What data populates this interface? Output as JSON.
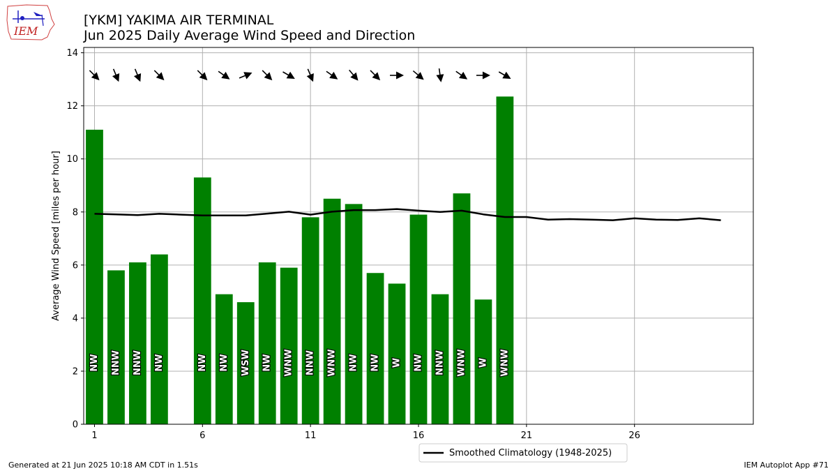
{
  "header": {
    "title_line1": "[YKM] YAKIMA AIR TERMINAL",
    "title_line2": "Jun 2025 Daily Average Wind Speed and Direction",
    "logo_text": "IEM"
  },
  "footer": {
    "left": "Generated at 21 Jun 2025 10:18 AM CDT in 1.51s",
    "right": "IEM Autoplot App #71"
  },
  "colors": {
    "bar": "#008000",
    "climatology": "#000000",
    "grid": "#b0b0b0"
  },
  "chart_data": {
    "type": "bar",
    "title": "[YKM] YAKIMA AIR TERMINAL\nJun 2025 Daily Average Wind Speed and Direction",
    "xlabel": "",
    "ylabel": "Average Wind Speed [miles per hour]",
    "xlim": [
      0.5,
      31.5
    ],
    "ylim": [
      0,
      14.2
    ],
    "xticks": [
      1,
      6,
      11,
      16,
      21,
      26
    ],
    "yticks": [
      0,
      2,
      4,
      6,
      8,
      10,
      12,
      14
    ],
    "grid": true,
    "legend_position": "bottom-center",
    "bars": [
      {
        "day": 1,
        "speed": 11.1,
        "dir_label": "NW",
        "dir_deg": 315
      },
      {
        "day": 2,
        "speed": 5.8,
        "dir_label": "NNW",
        "dir_deg": 337.5
      },
      {
        "day": 3,
        "speed": 6.1,
        "dir_label": "NNW",
        "dir_deg": 337.5
      },
      {
        "day": 4,
        "speed": 6.4,
        "dir_label": "NW",
        "dir_deg": 315
      },
      {
        "day": 6,
        "speed": 9.3,
        "dir_label": "NW",
        "dir_deg": 315
      },
      {
        "day": 7,
        "speed": 4.9,
        "dir_label": "NW",
        "dir_deg": 305
      },
      {
        "day": 8,
        "speed": 4.6,
        "dir_label": "WSW",
        "dir_deg": 247.5
      },
      {
        "day": 9,
        "speed": 6.1,
        "dir_label": "NW",
        "dir_deg": 315
      },
      {
        "day": 10,
        "speed": 5.9,
        "dir_label": "WNW",
        "dir_deg": 300
      },
      {
        "day": 11,
        "speed": 7.8,
        "dir_label": "NNW",
        "dir_deg": 337.5
      },
      {
        "day": 12,
        "speed": 8.5,
        "dir_label": "WNW",
        "dir_deg": 305
      },
      {
        "day": 13,
        "speed": 8.3,
        "dir_label": "NW",
        "dir_deg": 320
      },
      {
        "day": 14,
        "speed": 5.7,
        "dir_label": "NW",
        "dir_deg": 315
      },
      {
        "day": 15,
        "speed": 5.3,
        "dir_label": "W",
        "dir_deg": 270
      },
      {
        "day": 16,
        "speed": 7.9,
        "dir_label": "NW",
        "dir_deg": 310
      },
      {
        "day": 17,
        "speed": 4.9,
        "dir_label": "NNW",
        "dir_deg": 352
      },
      {
        "day": 18,
        "speed": 8.7,
        "dir_label": "WNW",
        "dir_deg": 305
      },
      {
        "day": 19,
        "speed": 4.7,
        "dir_label": "W",
        "dir_deg": 270
      },
      {
        "day": 20,
        "speed": 12.35,
        "dir_label": "WNW",
        "dir_deg": 300
      }
    ],
    "series": [
      {
        "name": "Smoothed Climatology (1948-2025)",
        "x": [
          1,
          2,
          3,
          4,
          5,
          6,
          7,
          8,
          9,
          10,
          11,
          12,
          13,
          14,
          15,
          16,
          17,
          18,
          19,
          20,
          21,
          22,
          23,
          24,
          25,
          26,
          27,
          28,
          29,
          30
        ],
        "values": [
          7.93,
          7.91,
          7.88,
          7.93,
          7.9,
          7.87,
          7.87,
          7.87,
          7.94,
          8.01,
          7.9,
          8.01,
          8.07,
          8.07,
          8.11,
          8.05,
          8.0,
          8.05,
          7.91,
          7.81,
          7.81,
          7.71,
          7.73,
          7.71,
          7.69,
          7.76,
          7.71,
          7.7,
          7.76,
          7.69
        ]
      }
    ]
  }
}
